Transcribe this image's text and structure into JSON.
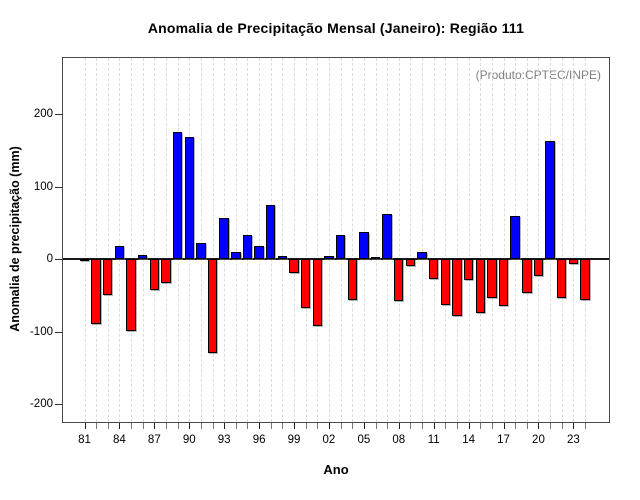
{
  "chart_data": {
    "type": "bar",
    "title": "Anomalia de Precipitação Mensal (Janeiro): Região 111",
    "annotation": "(Produto:CPTEC/INPE)",
    "xlabel": "Ano",
    "ylabel": "Anomalia de precipitação (mm)",
    "years": [
      1981,
      1982,
      1983,
      1984,
      1985,
      1986,
      1987,
      1988,
      1989,
      1990,
      1991,
      1992,
      1993,
      1994,
      1995,
      1996,
      1997,
      1998,
      1999,
      2000,
      2001,
      2002,
      2003,
      2004,
      2005,
      2006,
      2007,
      2008,
      2009,
      2010,
      2011,
      2012,
      2013,
      2014,
      2015,
      2016,
      2017,
      2018,
      2019,
      2020,
      2021,
      2022,
      2023,
      2024
    ],
    "values": [
      -2,
      -89,
      -50,
      18,
      -99,
      6,
      -42,
      -33,
      176,
      169,
      22,
      -129,
      57,
      10,
      34,
      18,
      75,
      5,
      -19,
      -68,
      -93,
      4,
      34,
      -57,
      38,
      2,
      62,
      -58,
      -9,
      10,
      -27,
      -63,
      -79,
      -29,
      -75,
      -54,
      -65,
      60,
      -47,
      -23,
      163,
      -53,
      -7,
      -56
    ],
    "yticks": [
      -200,
      -100,
      0,
      100,
      200
    ],
    "ylim": [
      -225,
      278
    ],
    "xtick_labels": [
      "81",
      "84",
      "87",
      "90",
      "93",
      "96",
      "99",
      "02",
      "05",
      "08",
      "11",
      "14",
      "17",
      "20",
      "23"
    ],
    "xtick_every": 3,
    "grid": "vertical-dashed",
    "legend": "none",
    "colors": {
      "bar_positive": "#0000ff",
      "bar_negative": "#ff0000",
      "bar_border": "#000000",
      "annotation_text": "#7f7f7f",
      "gridline": "#dcdcdc",
      "axis": "#4a4a4a",
      "zero_line": "#1a1a1a"
    }
  }
}
